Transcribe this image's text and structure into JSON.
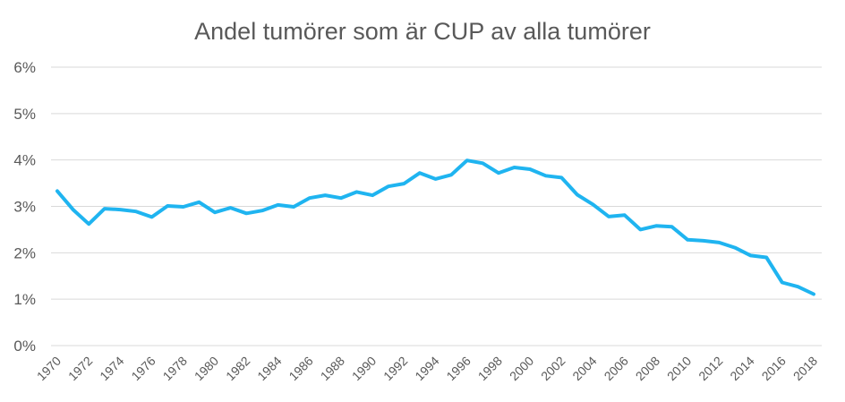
{
  "chart_data": {
    "type": "line",
    "title": "Andel tumörer som är CUP av alla tumörer",
    "xlabel": "",
    "ylabel": "",
    "ylim": [
      0,
      6
    ],
    "y_ticks": [
      "0%",
      "1%",
      "2%",
      "3%",
      "4%",
      "5%",
      "6%"
    ],
    "grid": true,
    "legend": "none",
    "line_color": "#1fb4f0",
    "x_tick_labels": [
      "1970",
      "1972",
      "1974",
      "1976",
      "1978",
      "1980",
      "1982",
      "1984",
      "1986",
      "1988",
      "1990",
      "1992",
      "1994",
      "1996",
      "1998",
      "2000",
      "2002",
      "2004",
      "2006",
      "2008",
      "2010",
      "2012",
      "2014",
      "2016",
      "2018"
    ],
    "x": [
      1970,
      1971,
      1972,
      1973,
      1974,
      1975,
      1976,
      1977,
      1978,
      1979,
      1980,
      1981,
      1982,
      1983,
      1984,
      1985,
      1986,
      1987,
      1988,
      1989,
      1990,
      1991,
      1992,
      1993,
      1994,
      1995,
      1996,
      1997,
      1998,
      1999,
      2000,
      2001,
      2002,
      2003,
      2004,
      2005,
      2006,
      2007,
      2008,
      2009,
      2010,
      2011,
      2012,
      2013,
      2014,
      2015,
      2016,
      2017,
      2018
    ],
    "series": [
      {
        "values": [
          3.33,
          2.93,
          2.62,
          2.95,
          2.93,
          2.89,
          2.77,
          3.01,
          2.99,
          3.09,
          2.87,
          2.97,
          2.85,
          2.91,
          3.03,
          2.99,
          3.18,
          3.24,
          3.18,
          3.31,
          3.24,
          3.43,
          3.49,
          3.72,
          3.59,
          3.68,
          3.99,
          3.93,
          3.72,
          3.84,
          3.8,
          3.66,
          3.62,
          3.25,
          3.04,
          2.78,
          2.81,
          2.5,
          2.58,
          2.56,
          2.28,
          2.26,
          2.22,
          2.11,
          1.94,
          1.9,
          1.36,
          1.27,
          1.11
        ]
      }
    ]
  }
}
